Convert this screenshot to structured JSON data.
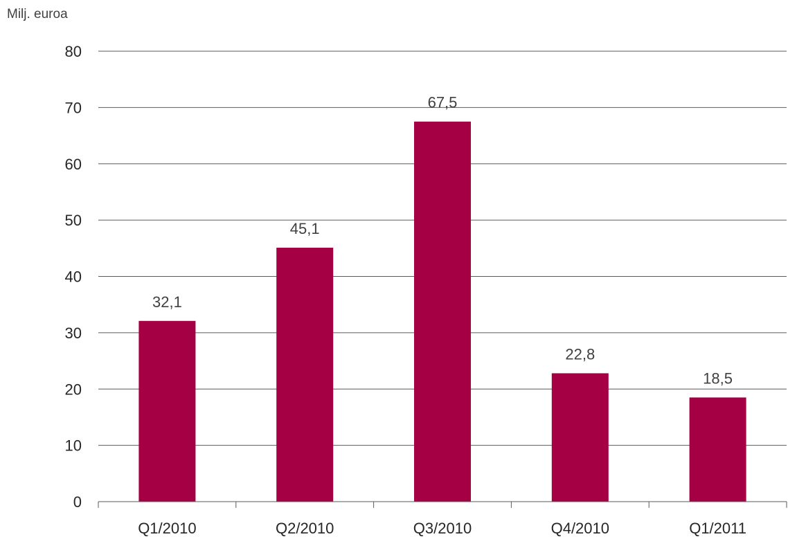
{
  "chart_data": {
    "type": "bar",
    "ylabel": "Milj. euroa",
    "categories": [
      "Q1/2010",
      "Q2/2010",
      "Q3/2010",
      "Q4/2010",
      "Q1/2011"
    ],
    "values": [
      32.1,
      45.1,
      67.5,
      22.8,
      18.5
    ],
    "value_labels": [
      "32,1",
      "45,1",
      "67,5",
      "22,8",
      "18,5"
    ],
    "ylim": [
      0,
      80
    ],
    "yticks": [
      0,
      10,
      20,
      30,
      40,
      50,
      60,
      70,
      80
    ],
    "grid": true,
    "colors": {
      "bar": "#A50044",
      "grid": "#595959",
      "text": "#262626"
    }
  }
}
